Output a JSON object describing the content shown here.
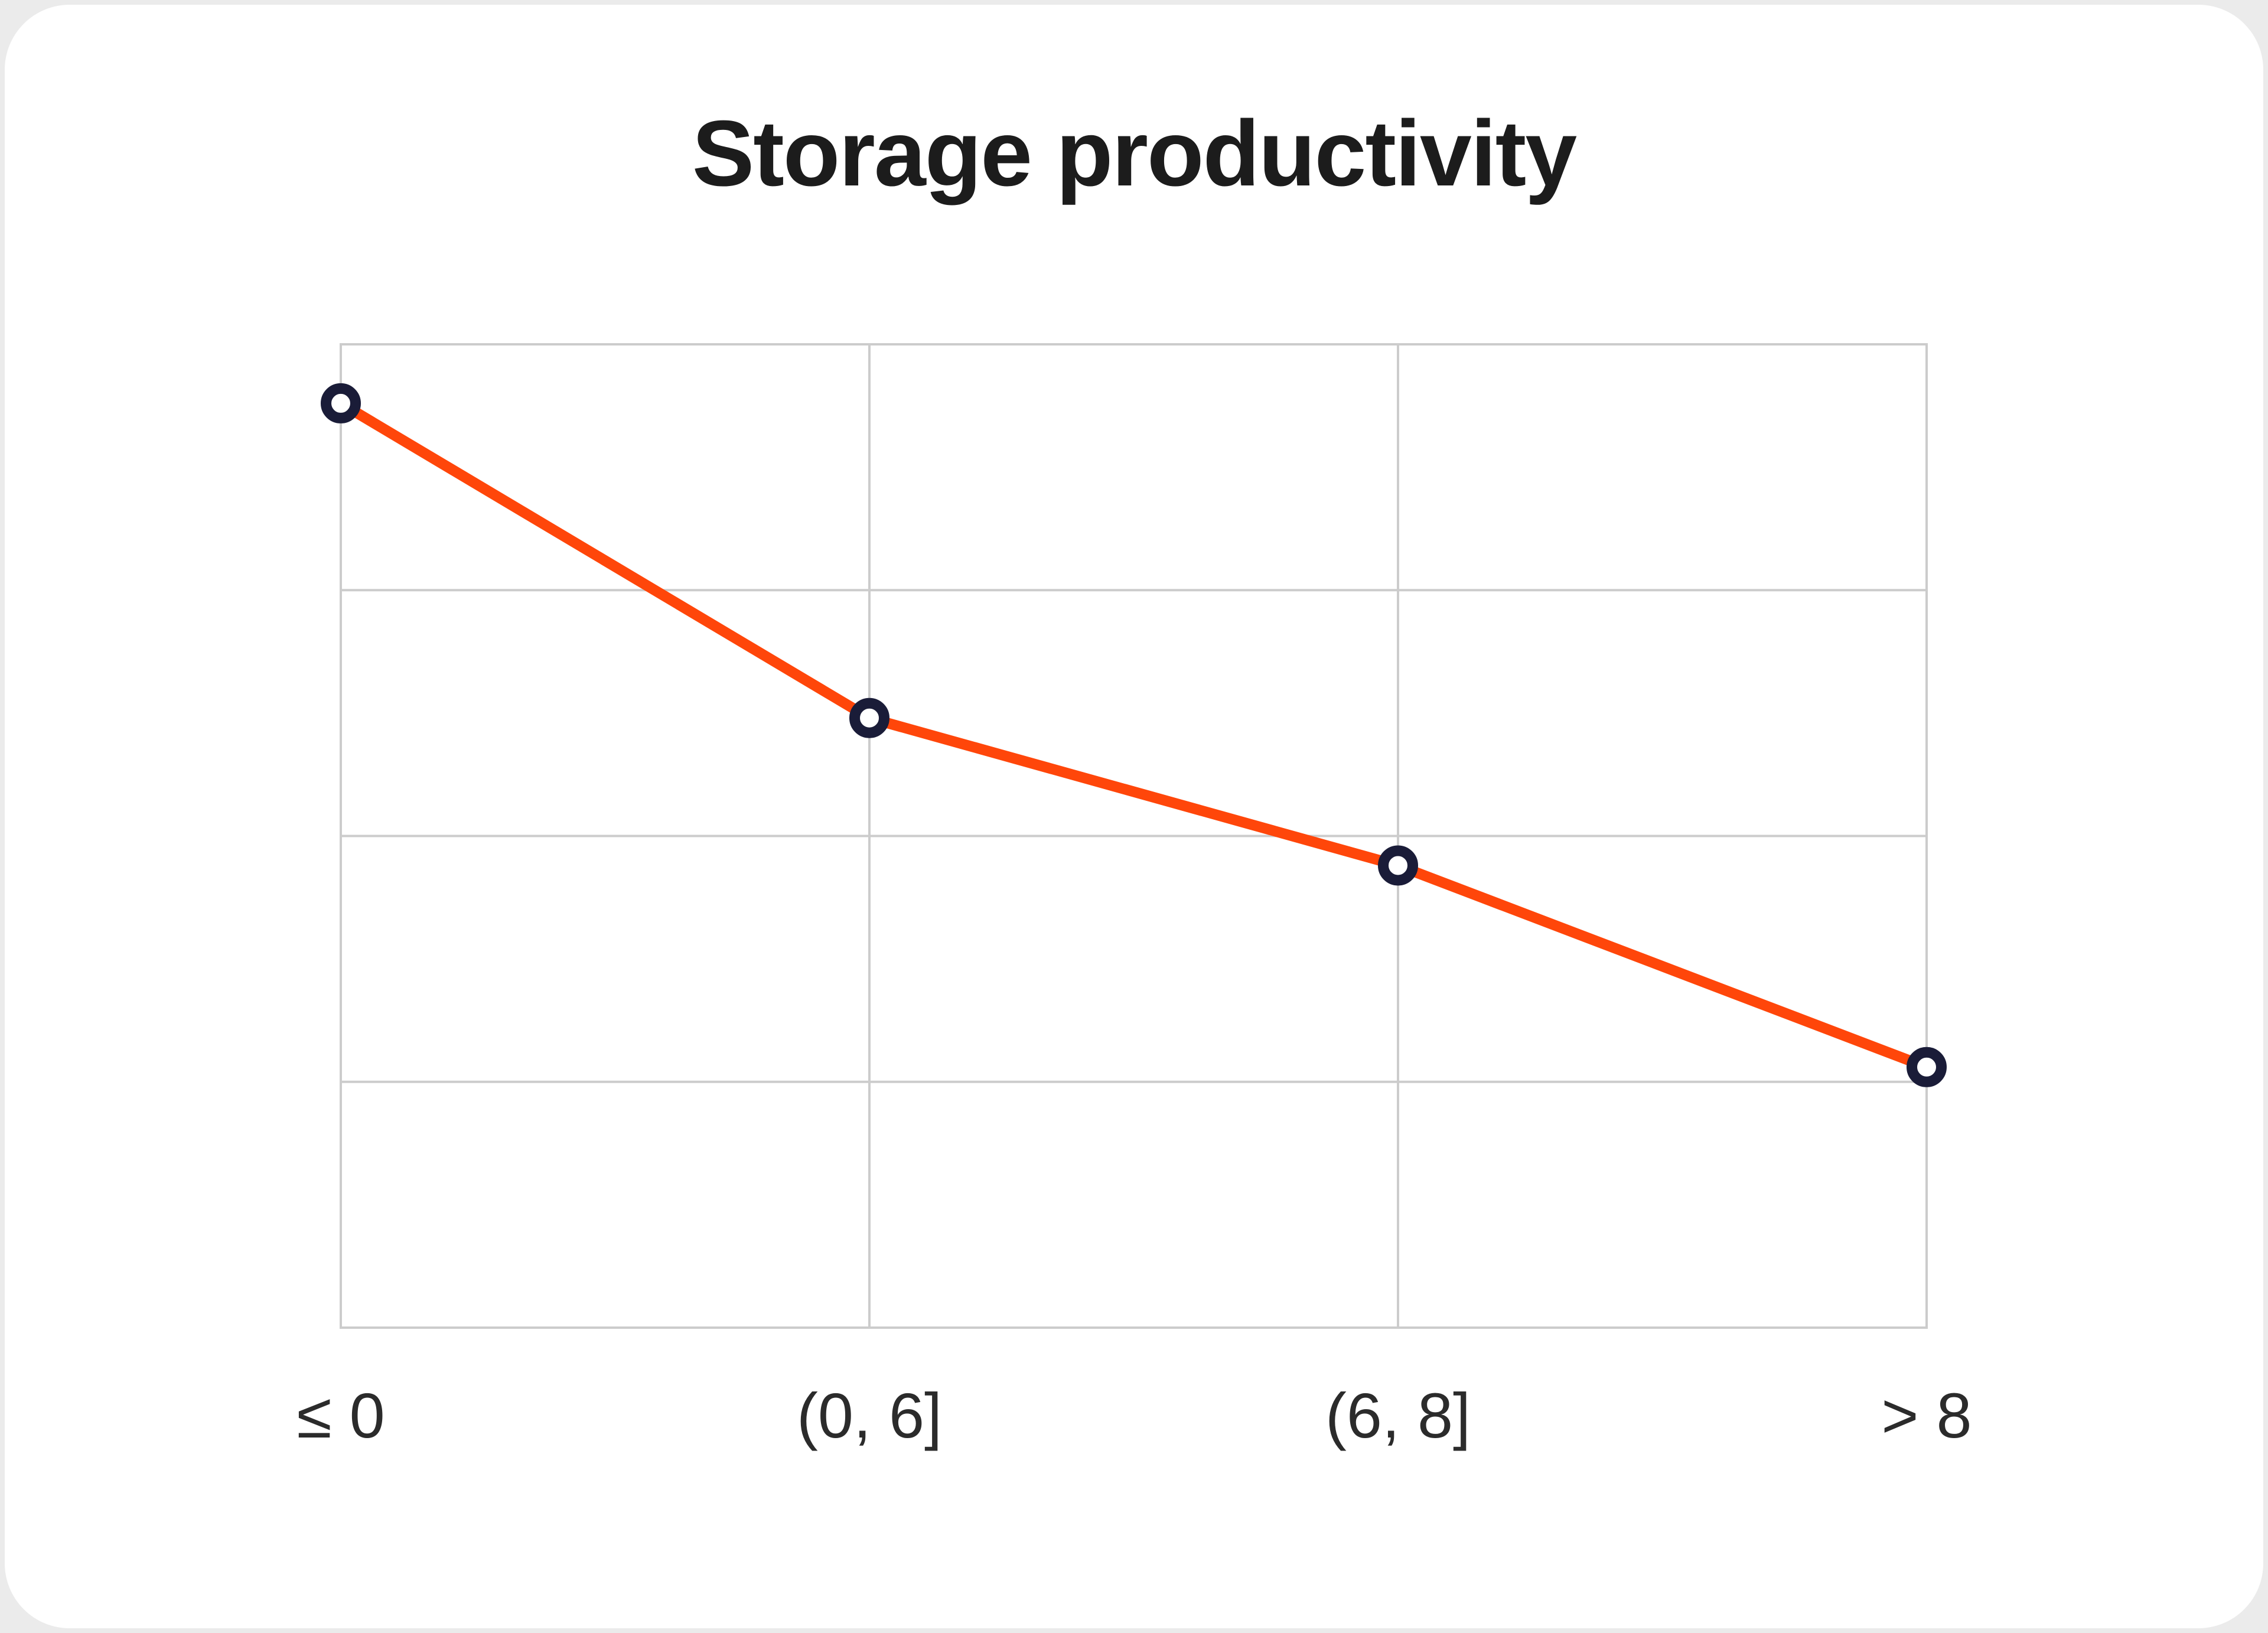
{
  "page": {
    "background": "#ebebeb"
  },
  "card": {
    "background": "#ffffff"
  },
  "chart_data": {
    "type": "line",
    "title": "Storage productivity",
    "categories": [
      "≤ 0",
      "(0, 6]",
      "(6, 8]",
      "> 8"
    ],
    "series": [
      {
        "name": "Storage productivity",
        "values": [
          0.94,
          0.62,
          0.47,
          0.265
        ]
      }
    ],
    "xlabel": "",
    "ylabel": "",
    "ylim": [
      0,
      1
    ],
    "y_tick_labels": [],
    "y_gridline_divisions": 4,
    "grid": "on",
    "legend": "none",
    "marker": "open-circle",
    "colors": {
      "line": "#ff460a",
      "marker_ring": "#1a1c38",
      "marker_fill": "#ffffff",
      "grid": "#cccccc",
      "title_text": "#1c1c1c",
      "tick_label_text": "#2b2b2b"
    }
  }
}
